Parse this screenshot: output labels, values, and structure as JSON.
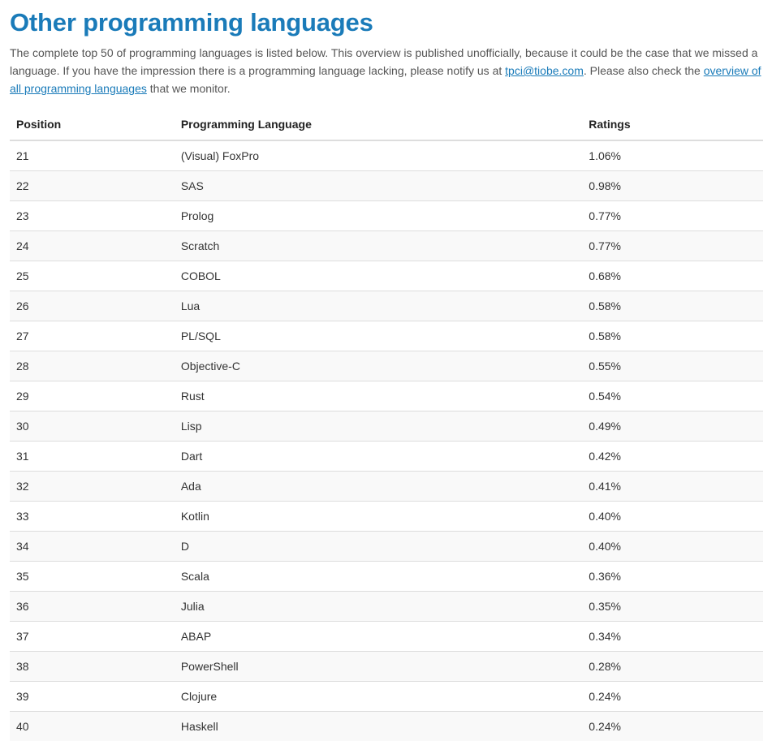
{
  "heading": {
    "title": "Other programming languages"
  },
  "intro": {
    "text_1": "The complete top 50 of programming languages is listed below. This overview is published unofficially, because it could be the case that we missed a language. If you have the impression there is a programming language lacking, please notify us at ",
    "email_link": "tpci@tiobe.com",
    "text_2": ". Please also check the ",
    "overview_link": "overview of all programming languages",
    "text_3": " that we monitor."
  },
  "table": {
    "headers": {
      "position": "Position",
      "language": "Programming Language",
      "ratings": "Ratings"
    },
    "rows": [
      {
        "position": "21",
        "language": "(Visual) FoxPro",
        "rating": "1.06%"
      },
      {
        "position": "22",
        "language": "SAS",
        "rating": "0.98%"
      },
      {
        "position": "23",
        "language": "Prolog",
        "rating": "0.77%"
      },
      {
        "position": "24",
        "language": "Scratch",
        "rating": "0.77%"
      },
      {
        "position": "25",
        "language": "COBOL",
        "rating": "0.68%"
      },
      {
        "position": "26",
        "language": "Lua",
        "rating": "0.58%"
      },
      {
        "position": "27",
        "language": "PL/SQL",
        "rating": "0.58%"
      },
      {
        "position": "28",
        "language": "Objective-C",
        "rating": "0.55%"
      },
      {
        "position": "29",
        "language": "Rust",
        "rating": "0.54%"
      },
      {
        "position": "30",
        "language": "Lisp",
        "rating": "0.49%"
      },
      {
        "position": "31",
        "language": "Dart",
        "rating": "0.42%"
      },
      {
        "position": "32",
        "language": "Ada",
        "rating": "0.41%"
      },
      {
        "position": "33",
        "language": "Kotlin",
        "rating": "0.40%"
      },
      {
        "position": "34",
        "language": "D",
        "rating": "0.40%"
      },
      {
        "position": "35",
        "language": "Scala",
        "rating": "0.36%"
      },
      {
        "position": "36",
        "language": "Julia",
        "rating": "0.35%"
      },
      {
        "position": "37",
        "language": "ABAP",
        "rating": "0.34%"
      },
      {
        "position": "38",
        "language": "PowerShell",
        "rating": "0.28%"
      },
      {
        "position": "39",
        "language": "Clojure",
        "rating": "0.24%"
      },
      {
        "position": "40",
        "language": "Haskell",
        "rating": "0.24%"
      }
    ]
  },
  "colors": {
    "heading": "#1a7bb9",
    "link": "#1a7bb9",
    "row_stripe": "#f9f9f9",
    "border": "#dddddd"
  }
}
